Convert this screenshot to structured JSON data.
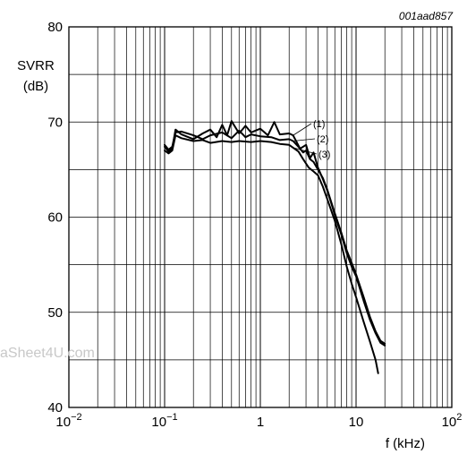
{
  "chart_data": {
    "type": "line",
    "reference": "001aad857",
    "ylabel": [
      "SVRR",
      "(dB)"
    ],
    "xlabel": "f (kHz)",
    "x_scale": "log",
    "xlim": [
      0.01,
      100
    ],
    "ylim": [
      40,
      80
    ],
    "y_ticks": [
      {
        "value": 40,
        "label": "40"
      },
      {
        "value": 50,
        "label": "50"
      },
      {
        "value": 60,
        "label": "60"
      },
      {
        "value": 70,
        "label": "70"
      },
      {
        "value": 80,
        "label": "80"
      }
    ],
    "x_ticks": [
      {
        "value": 0.01,
        "base": "10",
        "exp": "−2"
      },
      {
        "value": 0.1,
        "base": "10",
        "exp": "−1"
      },
      {
        "value": 1,
        "base": "1",
        "exp": ""
      },
      {
        "value": 10,
        "base": "10",
        "exp": ""
      },
      {
        "value": 100,
        "base": "10",
        "exp": "2"
      }
    ],
    "grid": "log-minor",
    "series": [
      {
        "name": "(1)",
        "points": [
          [
            0.1,
            67.4
          ],
          [
            0.11,
            66.9
          ],
          [
            0.12,
            67.2
          ],
          [
            0.13,
            69.2
          ],
          [
            0.15,
            68.7
          ],
          [
            0.2,
            68.2
          ],
          [
            0.25,
            68.8
          ],
          [
            0.3,
            69.2
          ],
          [
            0.35,
            68.4
          ],
          [
            0.4,
            69.7
          ],
          [
            0.45,
            68.6
          ],
          [
            0.5,
            70.1
          ],
          [
            0.6,
            68.8
          ],
          [
            0.7,
            69.6
          ],
          [
            0.8,
            68.9
          ],
          [
            1.0,
            69.3
          ],
          [
            1.2,
            68.6
          ],
          [
            1.4,
            70.0
          ],
          [
            1.6,
            68.7
          ],
          [
            2.0,
            68.8
          ],
          [
            2.2,
            68.6
          ],
          [
            2.6,
            67.2
          ],
          [
            3.0,
            67.6
          ],
          [
            3.3,
            66.2
          ],
          [
            3.6,
            66.8
          ],
          [
            4.0,
            65.2
          ],
          [
            4.5,
            64.0
          ],
          [
            5.0,
            62.8
          ],
          [
            5.5,
            61.5
          ],
          [
            6.0,
            60.2
          ],
          [
            7.0,
            58.2
          ],
          [
            8.0,
            56.2
          ],
          [
            9.0,
            54.8
          ],
          [
            10.0,
            53.8
          ],
          [
            12.0,
            51.2
          ],
          [
            14.0,
            49.2
          ],
          [
            16.0,
            47.8
          ],
          [
            18.0,
            46.8
          ],
          [
            20.0,
            46.5
          ]
        ]
      },
      {
        "name": "(2)",
        "points": [
          [
            0.1,
            67.6
          ],
          [
            0.11,
            67.1
          ],
          [
            0.12,
            67.4
          ],
          [
            0.13,
            68.9
          ],
          [
            0.15,
            69.0
          ],
          [
            0.2,
            68.6
          ],
          [
            0.25,
            68.2
          ],
          [
            0.3,
            68.6
          ],
          [
            0.4,
            68.9
          ],
          [
            0.5,
            68.3
          ],
          [
            0.6,
            69.1
          ],
          [
            0.7,
            68.4
          ],
          [
            0.8,
            68.7
          ],
          [
            1.0,
            68.5
          ],
          [
            1.3,
            68.4
          ],
          [
            1.6,
            68.1
          ],
          [
            2.0,
            68.2
          ],
          [
            2.2,
            68.0
          ],
          [
            2.5,
            67.4
          ],
          [
            2.8,
            66.8
          ],
          [
            3.0,
            67.0
          ],
          [
            3.3,
            66.1
          ],
          [
            3.6,
            65.8
          ],
          [
            4.0,
            65.0
          ],
          [
            4.5,
            64.1
          ],
          [
            5.0,
            62.9
          ],
          [
            5.5,
            61.6
          ],
          [
            6.0,
            60.4
          ],
          [
            7.0,
            58.4
          ],
          [
            8.0,
            56.5
          ],
          [
            9.0,
            55.2
          ],
          [
            10.0,
            54.0
          ],
          [
            12.0,
            51.6
          ],
          [
            14.0,
            49.5
          ],
          [
            16.0,
            48.0
          ],
          [
            18.0,
            47.0
          ],
          [
            20.0,
            46.7
          ]
        ]
      },
      {
        "name": "(3)",
        "points": [
          [
            0.1,
            67.0
          ],
          [
            0.11,
            66.7
          ],
          [
            0.12,
            67.0
          ],
          [
            0.13,
            68.6
          ],
          [
            0.15,
            68.3
          ],
          [
            0.2,
            68.0
          ],
          [
            0.25,
            68.1
          ],
          [
            0.3,
            67.8
          ],
          [
            0.4,
            68.0
          ],
          [
            0.5,
            67.9
          ],
          [
            0.6,
            68.0
          ],
          [
            0.8,
            67.9
          ],
          [
            1.0,
            68.0
          ],
          [
            1.3,
            67.9
          ],
          [
            1.6,
            67.7
          ],
          [
            2.0,
            67.6
          ],
          [
            2.2,
            67.3
          ],
          [
            2.5,
            66.9
          ],
          [
            2.8,
            66.1
          ],
          [
            3.2,
            65.2
          ],
          [
            3.6,
            64.8
          ],
          [
            4.0,
            64.4
          ],
          [
            4.5,
            63.2
          ],
          [
            5.0,
            61.9
          ],
          [
            6.0,
            59.6
          ],
          [
            7.0,
            57.2
          ],
          [
            8.0,
            54.8
          ],
          [
            9.0,
            53.0
          ],
          [
            10.0,
            51.6
          ],
          [
            12.0,
            49.0
          ],
          [
            14.0,
            46.9
          ],
          [
            16.0,
            45.0
          ],
          [
            17.0,
            43.6
          ]
        ]
      }
    ],
    "callouts": [
      {
        "series": "(1)",
        "label": "(1)"
      },
      {
        "series": "(2)",
        "label": "(2)"
      },
      {
        "series": "(3)",
        "label": "(3)"
      }
    ],
    "watermark": "aSheet4U.com"
  }
}
